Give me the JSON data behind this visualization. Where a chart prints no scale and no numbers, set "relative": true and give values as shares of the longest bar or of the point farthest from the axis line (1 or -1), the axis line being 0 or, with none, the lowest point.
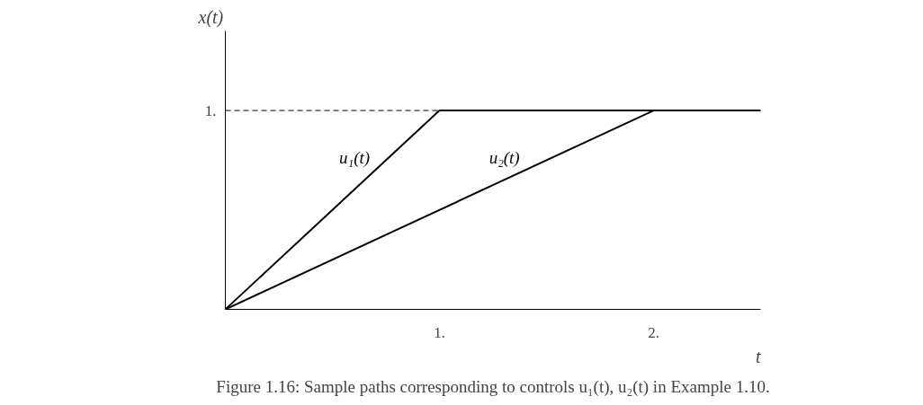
{
  "chart_data": {
    "type": "line",
    "xlabel": "t",
    "ylabel": "x(t)",
    "series": [
      {
        "name": "u₁(t)",
        "color": "#000000",
        "x": [
          0,
          1,
          2.5
        ],
        "values": [
          0,
          1,
          1
        ]
      },
      {
        "name": "u₂(t)",
        "color": "#000000",
        "x": [
          0,
          2,
          2.5
        ],
        "values": [
          0,
          1,
          1
        ]
      }
    ],
    "relative": true,
    "xlim": [
      0,
      2.5
    ],
    "xticks": [
      {
        "value": 1,
        "label": "1."
      },
      {
        "value": 2,
        "label": "2."
      }
    ],
    "ref_lines": [
      {
        "axis": "y",
        "value": 1,
        "label": "1.",
        "line_style": "dashed",
        "color": "#000000"
      }
    ],
    "grid": false,
    "marker": "none",
    "line_style": "solid",
    "annotations": [
      "Figure 1.16: Sample paths corresponding to controls u₁(t), u₂(t) in Example 1.10."
    ]
  }
}
